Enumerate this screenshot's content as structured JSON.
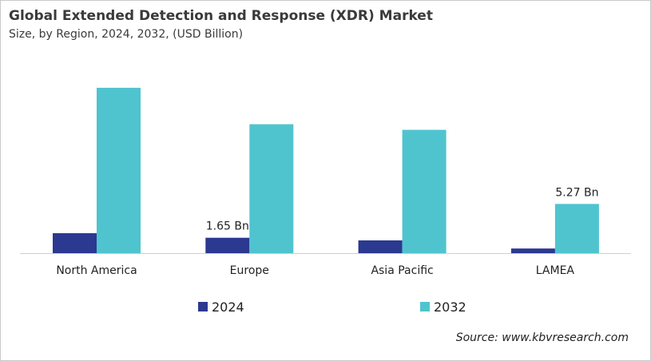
{
  "chart_data": {
    "type": "bar",
    "title": "Global Extended Detection and Response (XDR) Market",
    "subtitle": "Size, by Region, 2024, 2032, (USD Billion)",
    "categories": [
      "North America",
      "Europe",
      "Asia Pacific",
      "LAMEA"
    ],
    "series": [
      {
        "name": "2024",
        "color": "#2b3990",
        "values": [
          2.14,
          1.65,
          1.37,
          0.5
        ]
      },
      {
        "name": "2032",
        "color": "#4fc4cf",
        "values": [
          17.7,
          13.8,
          13.2,
          5.27
        ]
      }
    ],
    "data_labels": [
      {
        "series": 0,
        "index": 1,
        "text": "1.65 Bn"
      },
      {
        "series": 1,
        "index": 3,
        "text": "5.27 Bn"
      }
    ],
    "ylim": [
      0,
      18
    ],
    "grid": false,
    "legend": "bottom",
    "source": "Source: www.kbvresearch.com"
  }
}
